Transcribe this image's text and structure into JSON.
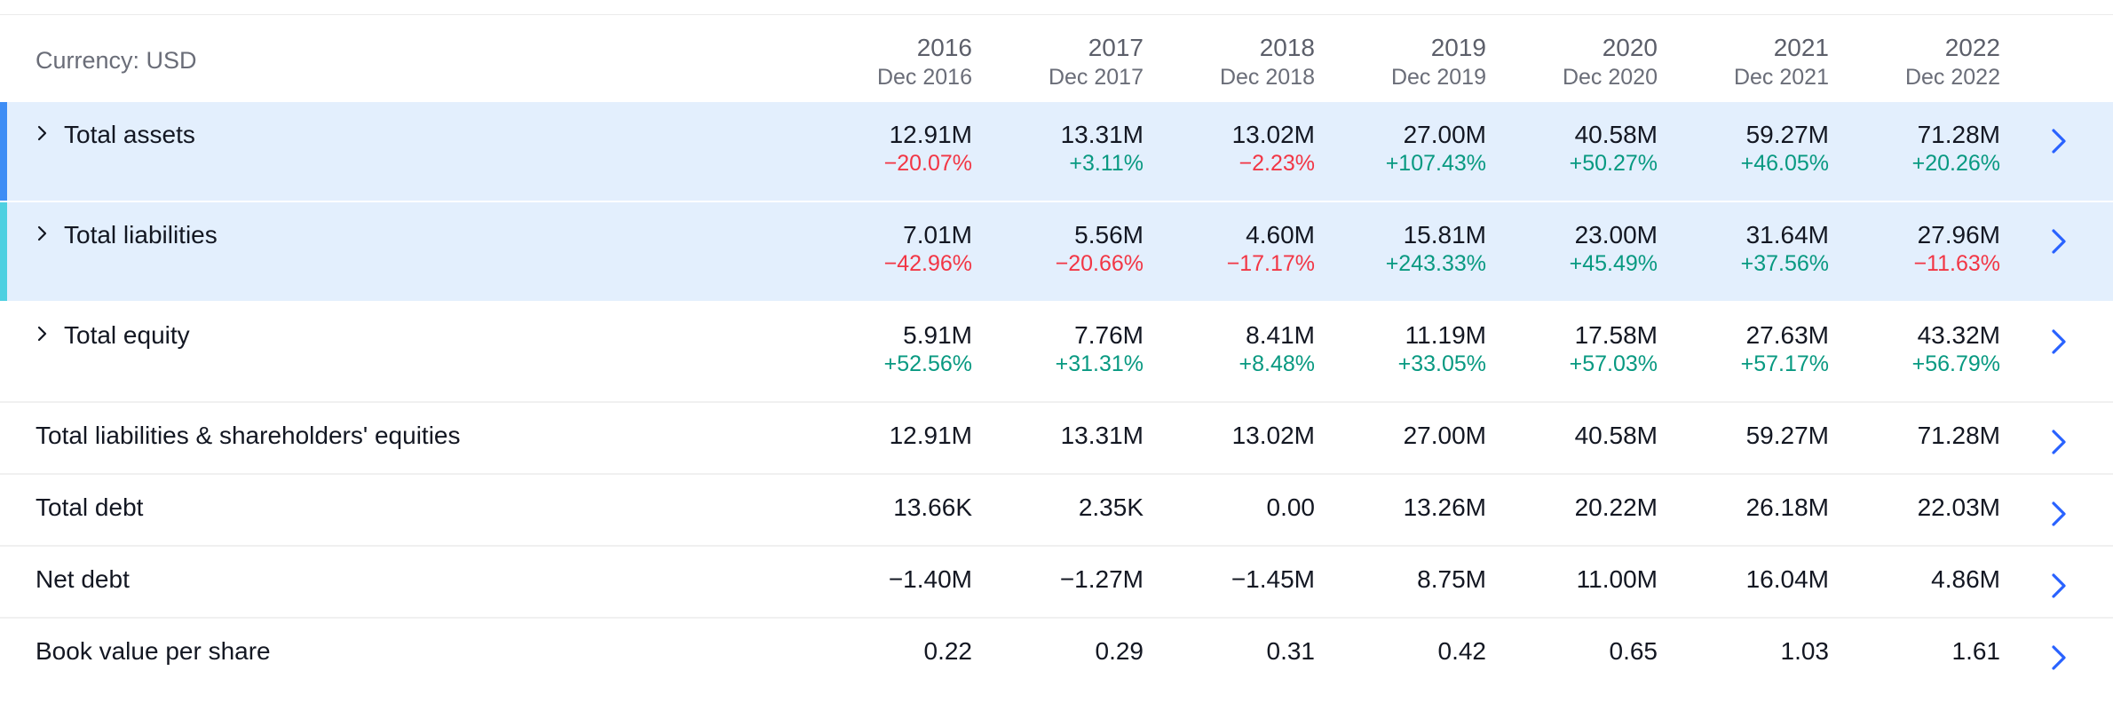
{
  "currency_label": "Currency: USD",
  "colors": {
    "highlight_row": "#e3effd",
    "assets_accent": "#3d8df5",
    "liabilities_accent": "#4dd0e1",
    "positive": "#089981",
    "negative": "#f23645",
    "link_chevron": "#2962ff"
  },
  "icons": {
    "expand": "chevron-right-icon",
    "open": "chevron-right-icon"
  },
  "columns": [
    {
      "year": "2016",
      "period": "Dec 2016"
    },
    {
      "year": "2017",
      "period": "Dec 2017"
    },
    {
      "year": "2018",
      "period": "Dec 2018"
    },
    {
      "year": "2019",
      "period": "Dec 2019"
    },
    {
      "year": "2020",
      "period": "Dec 2020"
    },
    {
      "year": "2021",
      "period": "Dec 2021"
    },
    {
      "year": "2022",
      "period": "Dec 2022"
    }
  ],
  "rows": [
    {
      "label": "Total assets",
      "values": [
        "12.91M",
        "13.31M",
        "13.02M",
        "27.00M",
        "40.58M",
        "59.27M",
        "71.28M"
      ],
      "changes": [
        "−20.07%",
        "+3.11%",
        "−2.23%",
        "+107.43%",
        "+50.27%",
        "+46.05%",
        "+20.26%"
      ]
    },
    {
      "label": "Total liabilities",
      "values": [
        "7.01M",
        "5.56M",
        "4.60M",
        "15.81M",
        "23.00M",
        "31.64M",
        "27.96M"
      ],
      "changes": [
        "−42.96%",
        "−20.66%",
        "−17.17%",
        "+243.33%",
        "+45.49%",
        "+37.56%",
        "−11.63%"
      ]
    },
    {
      "label": "Total equity",
      "values": [
        "5.91M",
        "7.76M",
        "8.41M",
        "11.19M",
        "17.58M",
        "27.63M",
        "43.32M"
      ],
      "changes": [
        "+52.56%",
        "+31.31%",
        "+8.48%",
        "+33.05%",
        "+57.03%",
        "+57.17%",
        "+56.79%"
      ]
    },
    {
      "label": "Total liabilities & shareholders' equities",
      "values": [
        "12.91M",
        "13.31M",
        "13.02M",
        "27.00M",
        "40.58M",
        "59.27M",
        "71.28M"
      ]
    },
    {
      "label": "Total debt",
      "values": [
        "13.66K",
        "2.35K",
        "0.00",
        "13.26M",
        "20.22M",
        "26.18M",
        "22.03M"
      ]
    },
    {
      "label": "Net debt",
      "values": [
        "−1.40M",
        "−1.27M",
        "−1.45M",
        "8.75M",
        "11.00M",
        "16.04M",
        "4.86M"
      ]
    },
    {
      "label": "Book value per share",
      "values": [
        "0.22",
        "0.29",
        "0.31",
        "0.42",
        "0.65",
        "1.03",
        "1.61"
      ]
    }
  ]
}
